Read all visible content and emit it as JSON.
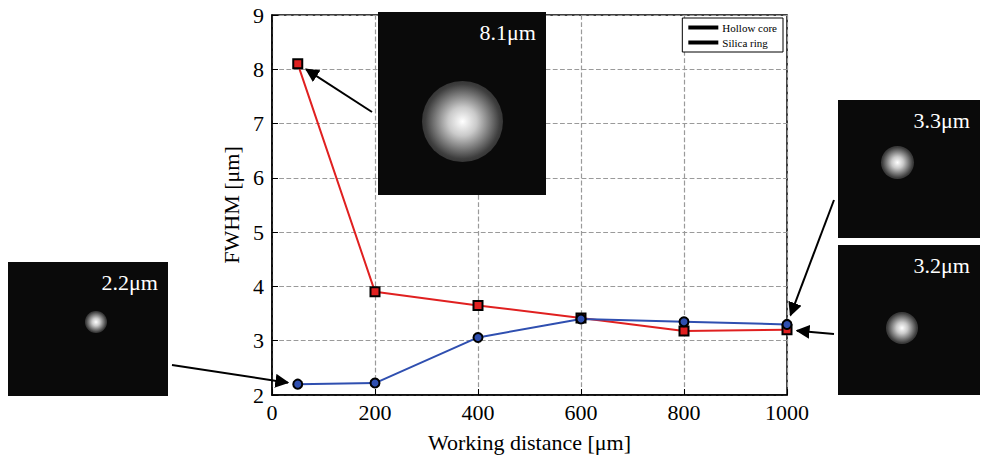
{
  "chart_data": {
    "type": "line",
    "x_label": "Working distance [μm]",
    "y_label": "FWHM [μm]",
    "x": [
      50,
      200,
      400,
      600,
      800,
      1000
    ],
    "series": [
      {
        "name": "Hollow core",
        "color": "#e02020",
        "marker": "square",
        "values": [
          8.1,
          3.9,
          3.65,
          3.42,
          3.18,
          3.2
        ]
      },
      {
        "name": "Silica ring",
        "color": "#2f4fb0",
        "marker": "circle",
        "values": [
          2.2,
          2.22,
          3.06,
          3.4,
          3.35,
          3.3
        ]
      }
    ],
    "xlim": [
      0,
      1000
    ],
    "xticks": [
      0,
      200,
      400,
      600,
      800,
      1000
    ],
    "ylim": [
      2,
      9
    ],
    "yticks": [
      2,
      3,
      4,
      5,
      6,
      7,
      8,
      9
    ],
    "grid": true,
    "legend": "upper right",
    "annotations": [
      {
        "text": "8.1μm",
        "x": 50,
        "y": 8.1
      },
      {
        "text": "2.2μm",
        "x": 50,
        "y": 2.2
      },
      {
        "text": "3.3μm",
        "x": 1000,
        "y": 3.3
      },
      {
        "text": "3.2μm",
        "x": 1000,
        "y": 3.2
      }
    ]
  }
}
